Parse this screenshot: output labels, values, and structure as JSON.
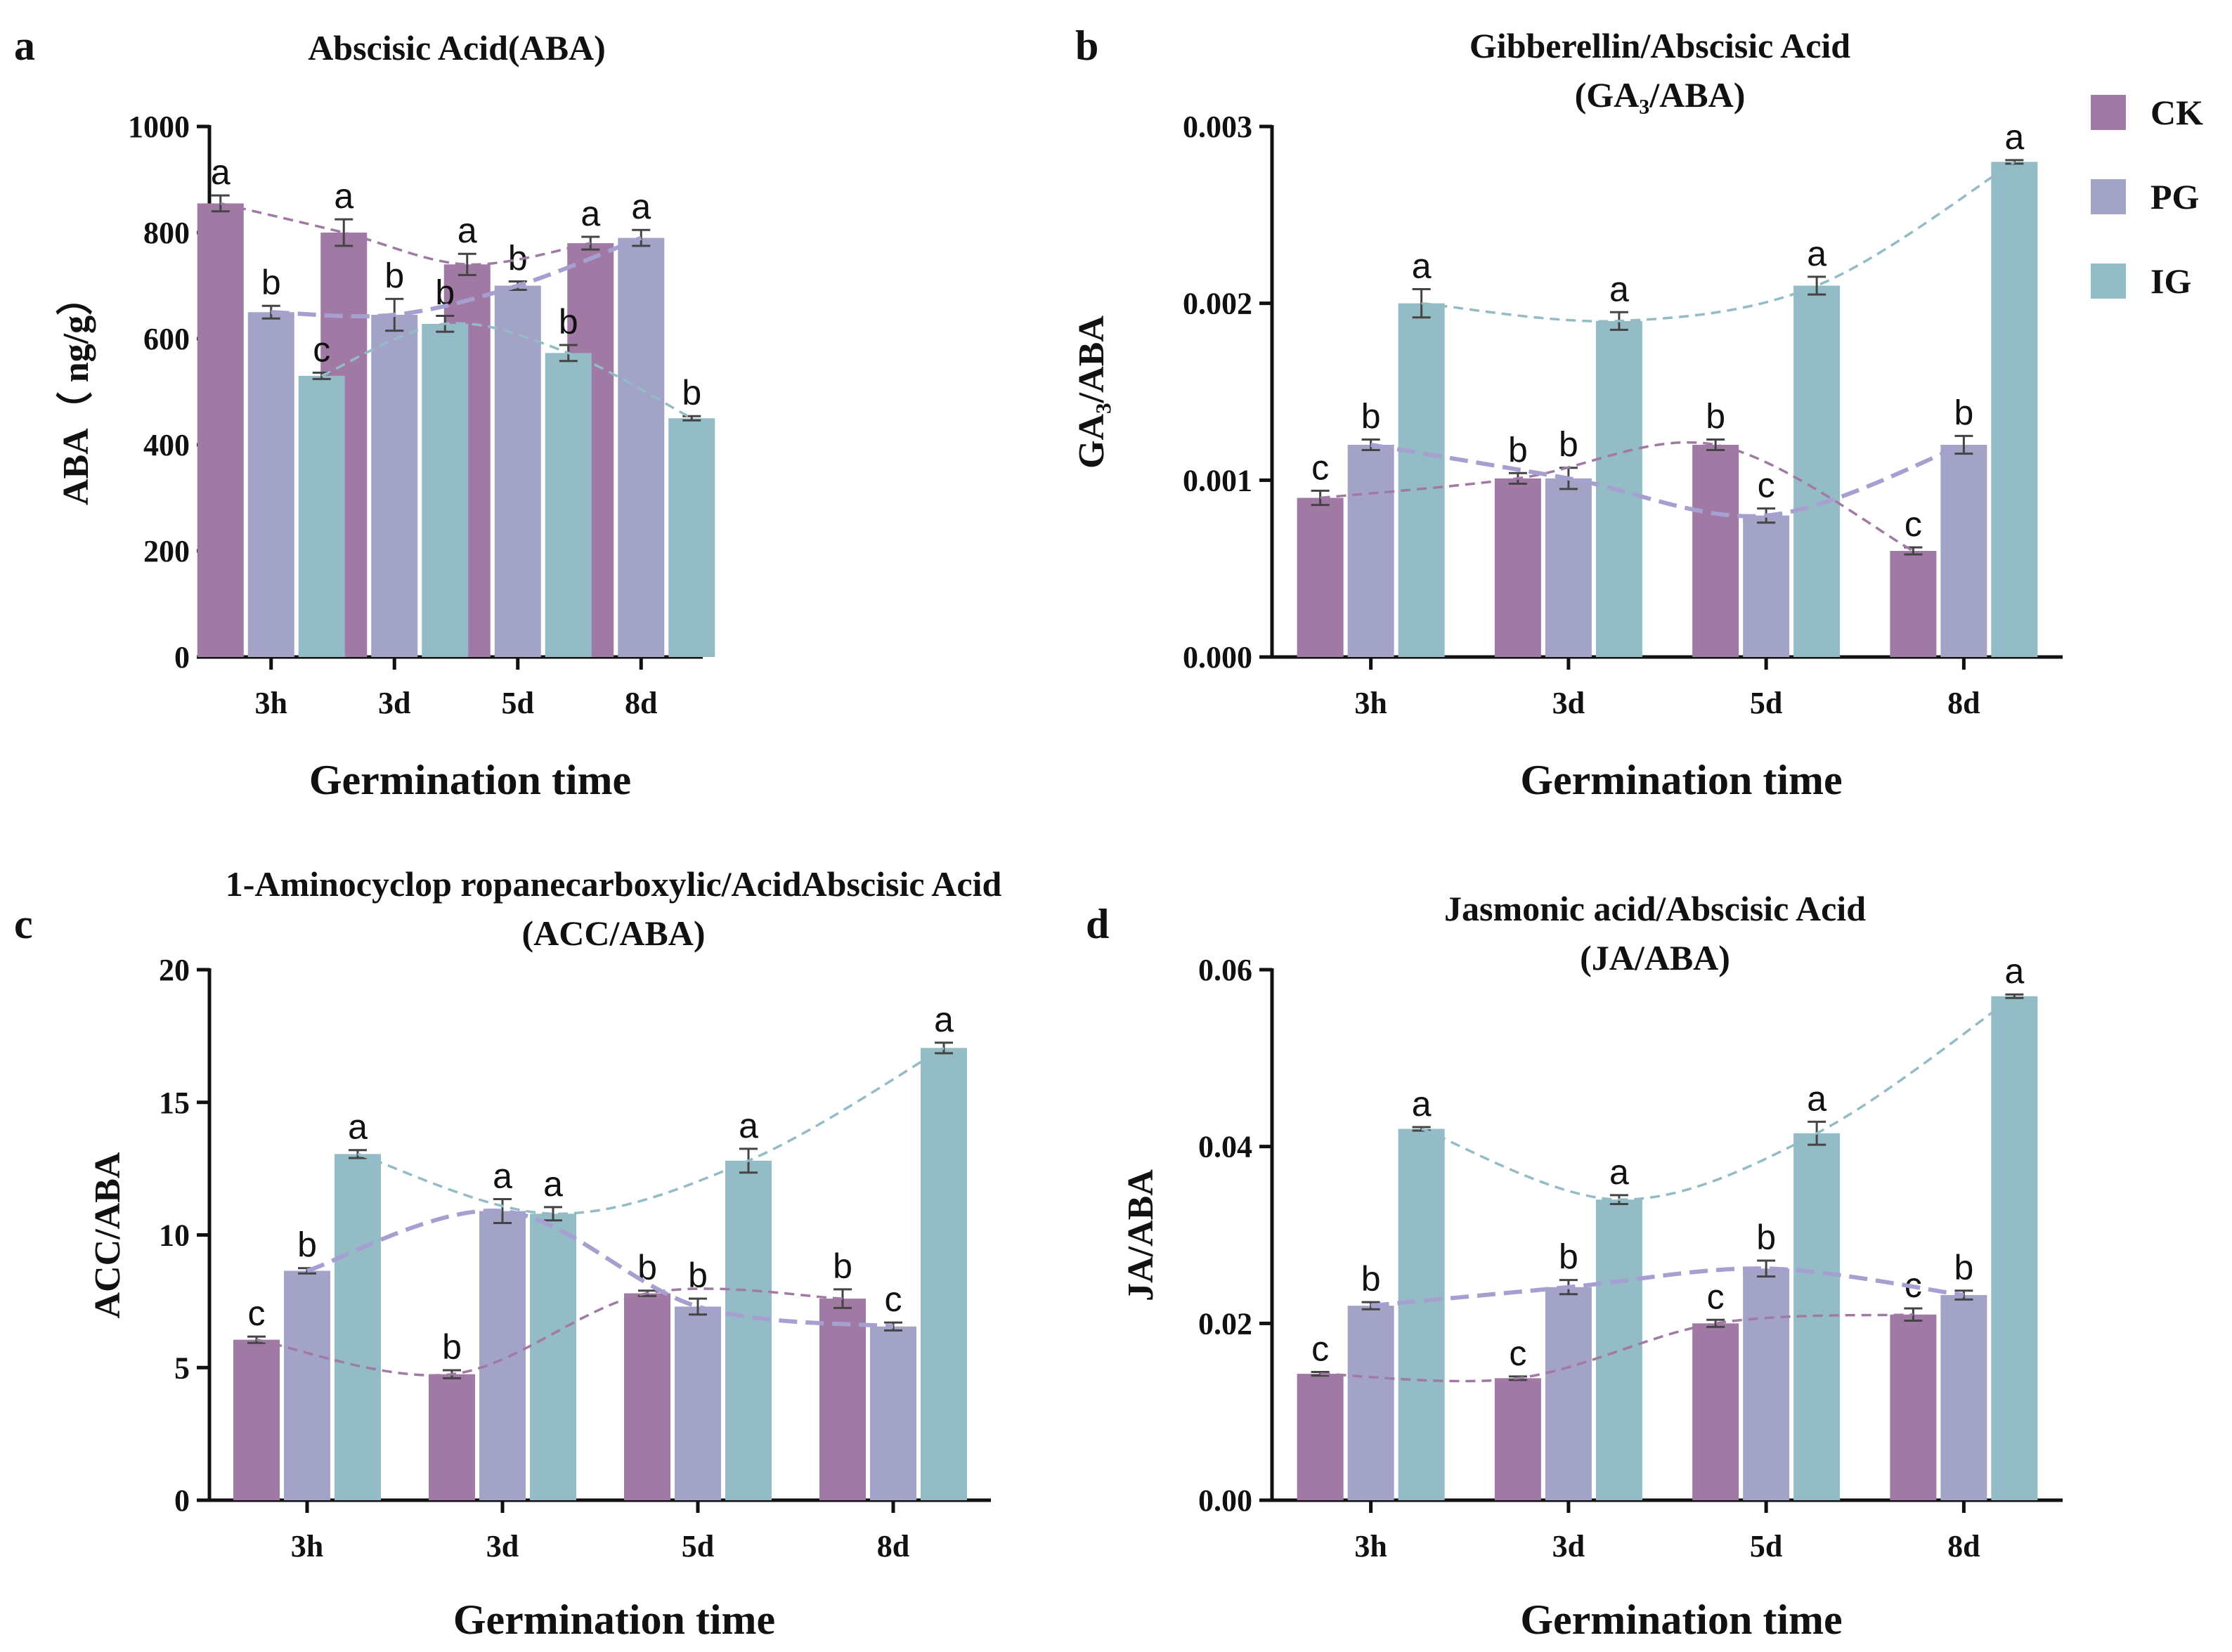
{
  "figure": {
    "legend": [
      {
        "key": "CK",
        "label": "CK",
        "color": "#a07aa4"
      },
      {
        "key": "PG",
        "label": "PG",
        "color": "#a3a3c8"
      },
      {
        "key": "IG",
        "label": "IG",
        "color": "#93bcc6"
      }
    ]
  },
  "chart_data": [
    {
      "panel": "a",
      "type": "bar",
      "title": [
        "Abscisic Acid(ABA)"
      ],
      "xlabel": "Germination time",
      "ylabel": "ABA（ ng/g）",
      "categories": [
        "3h",
        "3d",
        "5d",
        "8d"
      ],
      "ylim": [
        0,
        1000
      ],
      "yticks": [
        0,
        200,
        400,
        600,
        800,
        1000
      ],
      "ytick_labels": [
        "0",
        "200",
        "400",
        "600",
        "800",
        "1000"
      ],
      "series": [
        {
          "name": "CK",
          "values": [
            855,
            800,
            740,
            780
          ],
          "errors": [
            15,
            25,
            20,
            12
          ],
          "letters": [
            "a",
            "a",
            "a",
            "a"
          ]
        },
        {
          "name": "PG",
          "values": [
            650,
            645,
            700,
            790
          ],
          "errors": [
            12,
            30,
            8,
            15
          ],
          "letters": [
            "b",
            "b",
            "b",
            "a"
          ]
        },
        {
          "name": "IG",
          "values": [
            530,
            628,
            573,
            450
          ],
          "errors": [
            6,
            15,
            15,
            4
          ],
          "letters": [
            "c",
            "b",
            "b",
            "b"
          ]
        }
      ]
    },
    {
      "panel": "b",
      "type": "bar",
      "title": [
        "Gibberellin/Abscisic Acid",
        "(GA₃/ABA)"
      ],
      "xlabel": "Germination time",
      "ylabel": "GA₃/ABA",
      "categories": [
        "3h",
        "3d",
        "5d",
        "8d"
      ],
      "ylim": [
        0,
        0.003
      ],
      "yticks": [
        0,
        0.001,
        0.002,
        0.003
      ],
      "ytick_labels": [
        "0.000",
        "0.001",
        "0.002",
        "0.003"
      ],
      "series": [
        {
          "name": "CK",
          "values": [
            0.0009,
            0.00101,
            0.0012,
            0.0006
          ],
          "errors": [
            4e-05,
            3e-05,
            3e-05,
            2e-05
          ],
          "letters": [
            "c",
            "b",
            "b",
            "c"
          ]
        },
        {
          "name": "PG",
          "values": [
            0.0012,
            0.00101,
            0.0008,
            0.0012
          ],
          "errors": [
            3e-05,
            6e-05,
            4e-05,
            5e-05
          ],
          "letters": [
            "b",
            "b",
            "c",
            "b"
          ]
        },
        {
          "name": "IG",
          "values": [
            0.002,
            0.0019,
            0.0021,
            0.0028
          ],
          "errors": [
            8e-05,
            5e-05,
            5e-05,
            1e-05
          ],
          "letters": [
            "a",
            "a",
            "a",
            "a"
          ]
        }
      ]
    },
    {
      "panel": "c",
      "type": "bar",
      "title": [
        "1-Aminocyclop ropanecarboxylic/AcidAbscisic Acid",
        "(ACC/ABA)"
      ],
      "xlabel": "Germination time",
      "ylabel": "ACC/ABA",
      "categories": [
        "3h",
        "3d",
        "5d",
        "8d"
      ],
      "ylim": [
        0,
        20
      ],
      "yticks": [
        0,
        5,
        10,
        15,
        20
      ],
      "ytick_labels": [
        "0",
        "5",
        "10",
        "15",
        "20"
      ],
      "series": [
        {
          "name": "CK",
          "values": [
            6.05,
            4.75,
            7.8,
            7.6
          ],
          "errors": [
            0.12,
            0.15,
            0.1,
            0.35
          ],
          "letters": [
            "c",
            "b",
            "b",
            "b"
          ]
        },
        {
          "name": "PG",
          "values": [
            8.65,
            10.9,
            7.3,
            6.55
          ],
          "errors": [
            0.1,
            0.45,
            0.3,
            0.15
          ],
          "letters": [
            "b",
            "a",
            "b",
            "c"
          ]
        },
        {
          "name": "IG",
          "values": [
            13.05,
            10.8,
            12.8,
            17.05
          ],
          "errors": [
            0.15,
            0.25,
            0.45,
            0.2
          ],
          "letters": [
            "a",
            "a",
            "a",
            "a"
          ]
        }
      ]
    },
    {
      "panel": "d",
      "type": "bar",
      "title": [
        "Jasmonic acid/Abscisic Acid",
        "(JA/ABA)"
      ],
      "xlabel": "Germination time",
      "ylabel": "JA/ABA",
      "categories": [
        "3h",
        "3d",
        "5d",
        "8d"
      ],
      "ylim": [
        0,
        0.06
      ],
      "yticks": [
        0,
        0.02,
        0.04,
        0.06
      ],
      "ytick_labels": [
        "0.00",
        "0.02",
        "0.04",
        "0.06"
      ],
      "series": [
        {
          "name": "CK",
          "values": [
            0.0143,
            0.0138,
            0.02,
            0.021
          ],
          "errors": [
            0.0002,
            0.0002,
            0.0004,
            0.0007
          ],
          "letters": [
            "c",
            "c",
            "c",
            "c"
          ]
        },
        {
          "name": "PG",
          "values": [
            0.022,
            0.0241,
            0.0262,
            0.0232
          ],
          "errors": [
            0.0004,
            0.0008,
            0.0009,
            0.0005
          ],
          "letters": [
            "b",
            "b",
            "b",
            "b"
          ]
        },
        {
          "name": "IG",
          "values": [
            0.042,
            0.034,
            0.0415,
            0.057
          ],
          "errors": [
            0.0002,
            0.0005,
            0.0013,
            0.0002
          ],
          "letters": [
            "a",
            "a",
            "a",
            "a"
          ]
        }
      ]
    }
  ]
}
